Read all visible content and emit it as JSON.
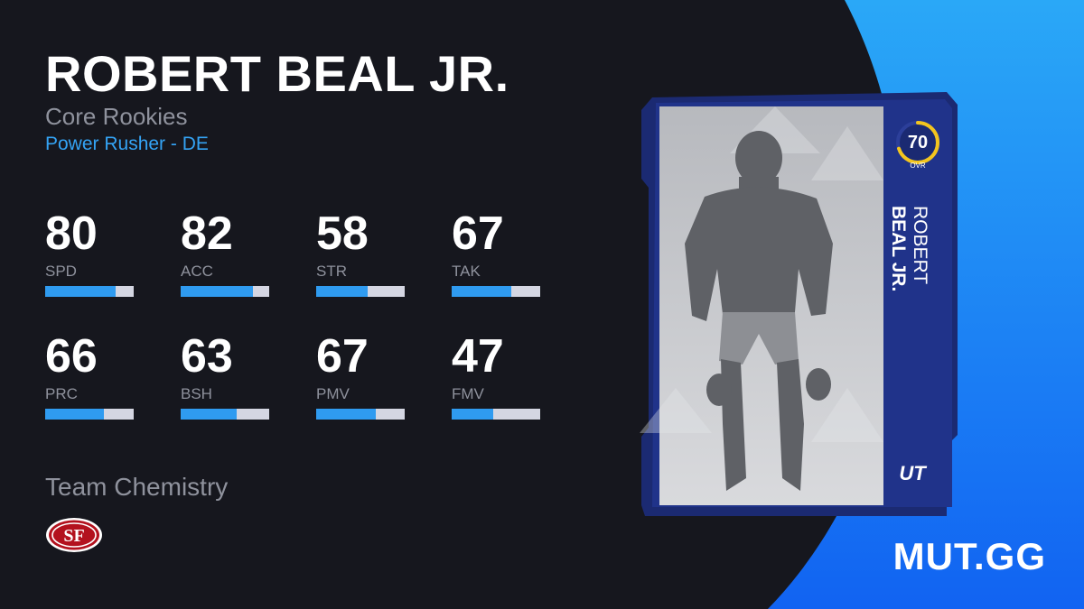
{
  "player": {
    "name": "ROBERT BEAL JR.",
    "program": "Core Rookies",
    "archetype": "Power Rusher - DE"
  },
  "stats": [
    {
      "value": "80",
      "label": "SPD",
      "fill": 0.8
    },
    {
      "value": "82",
      "label": "ACC",
      "fill": 0.82
    },
    {
      "value": "58",
      "label": "STR",
      "fill": 0.58
    },
    {
      "value": "67",
      "label": "TAK",
      "fill": 0.67
    },
    {
      "value": "66",
      "label": "PRC",
      "fill": 0.66
    },
    {
      "value": "63",
      "label": "BSH",
      "fill": 0.63
    },
    {
      "value": "67",
      "label": "PMV",
      "fill": 0.67
    },
    {
      "value": "47",
      "label": "FMV",
      "fill": 0.47
    }
  ],
  "chemistry": {
    "title": "Team Chemistry",
    "team_logo_icon": "49ers-logo-icon",
    "team_logo_text": "SF"
  },
  "card": {
    "overall": "70",
    "overall_label": "OVR",
    "overall_fill": 0.7,
    "first_name": "ROBERT",
    "last_name": "BEAL JR.",
    "badge": "UT",
    "photo_icon": "player-photo"
  },
  "brand": "MUT.GG",
  "colors": {
    "background": "#16171e",
    "accent_blue": "#34a3f4",
    "bar_fill": "#2f9bf0",
    "bar_track": "#d4d6e2",
    "card_frame": "#1b2a72",
    "ovr_ring": "#f3c51e",
    "team_red": "#b3121e"
  }
}
